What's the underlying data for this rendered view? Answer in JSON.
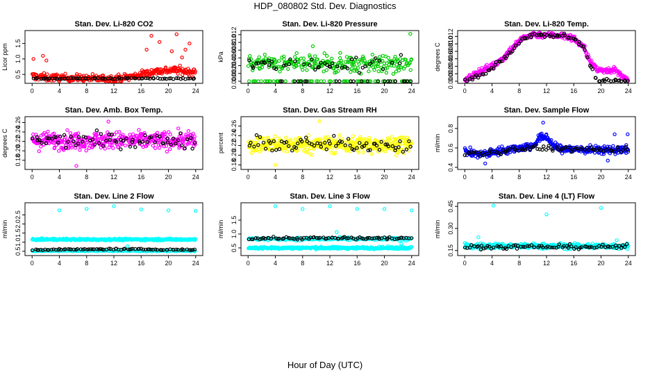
{
  "figure": {
    "title": "HDP_080802  Std. Dev. Diagnostics",
    "xlabel": "Hour of Day (UTC)"
  },
  "chart_data": [
    {
      "type": "scatter",
      "title": "Stan. Dev. Li-820 CO2",
      "ylabel": "Licor ppm",
      "color": "#FF0000",
      "xlim": [
        0,
        24
      ],
      "xticks": [
        0,
        4,
        8,
        12,
        16,
        20,
        24
      ],
      "ylim": [
        0.28,
        1.85
      ],
      "yticks": [
        0.5,
        1.0,
        1.5
      ],
      "ytick_labels": [
        "0.5",
        "1.0",
        "1.5"
      ],
      "series": [
        {
          "name": "main",
          "color": "#FF0000",
          "profile": [
            [
              0,
              0.45
            ],
            [
              2,
              0.4
            ],
            [
              6,
              0.38
            ],
            [
              12,
              0.36
            ],
            [
              14,
              0.4
            ],
            [
              16,
              0.5
            ],
            [
              18,
              0.6
            ],
            [
              21,
              0.65
            ],
            [
              24,
              0.55
            ]
          ],
          "noise": 0.12,
          "n": 320
        },
        {
          "name": "black",
          "color": "#000000",
          "profile": [
            [
              0,
              0.37
            ],
            [
              24,
              0.37
            ]
          ],
          "noise": 0.02,
          "n": 70
        }
      ],
      "outliers": [
        [
          0.2,
          1.0
        ],
        [
          1.6,
          1.1
        ],
        [
          2.1,
          0.95
        ],
        [
          16.8,
          1.3
        ],
        [
          17.5,
          1.75
        ],
        [
          18.7,
          1.55
        ],
        [
          20.5,
          1.25
        ],
        [
          21.2,
          1.8
        ],
        [
          22.5,
          1.3
        ],
        [
          23.1,
          1.5
        ],
        [
          22.0,
          1.05
        ]
      ]
    },
    {
      "type": "scatter",
      "title": "Stan. Dev. Li-820 Pressure",
      "ylabel": "kPa",
      "color": "#00CC00",
      "xlim": [
        0,
        24
      ],
      "xticks": [
        0,
        4,
        8,
        12,
        16,
        20,
        24
      ],
      "ylim": [
        0,
        0.0125
      ],
      "yticks": [
        0,
        0.002,
        0.004,
        0.006,
        0.008,
        0.01,
        0.012
      ],
      "ytick_labels": [
        "0.000",
        "0.002",
        "0.004",
        "0.006",
        "0.008",
        "0.010",
        "0.012"
      ],
      "series": [
        {
          "name": "main",
          "color": "#00CC00",
          "profile": [
            [
              0,
              0.0045
            ],
            [
              24,
              0.0045
            ]
          ],
          "noise": 0.0022,
          "n": 320,
          "zero_frac": 0.22
        },
        {
          "name": "black",
          "color": "#000000",
          "profile": [
            [
              0,
              0.0045
            ],
            [
              24,
              0.0045
            ]
          ],
          "noise": 0.0018,
          "n": 70,
          "zero_frac": 0.3
        }
      ],
      "outliers": [
        [
          23.8,
          0.0122
        ],
        [
          9.5,
          0.009
        ]
      ]
    },
    {
      "type": "scatter",
      "title": "Stan. Dev. Li-820 Temp.",
      "ylabel": "degrees C",
      "color": "#FF00FF",
      "xlim": [
        0,
        24
      ],
      "xticks": [
        0,
        4,
        8,
        12,
        16,
        20,
        24
      ],
      "ylim": [
        0,
        0.013
      ],
      "yticks": [
        0,
        0.002,
        0.004,
        0.006,
        0.008,
        0.01,
        0.012
      ],
      "ytick_labels": [
        "0.000",
        "0.002",
        "0.004",
        "0.006",
        "0.008",
        "0.010",
        "0.012"
      ],
      "series": [
        {
          "name": "main",
          "color": "#FF00FF",
          "profile": [
            [
              0,
              0
            ],
            [
              1.2,
              0.0015
            ],
            [
              2.5,
              0.003
            ],
            [
              4,
              0.004
            ],
            [
              5.5,
              0.006
            ],
            [
              7,
              0.009
            ],
            [
              8.5,
              0.0115
            ],
            [
              10,
              0.0125
            ],
            [
              14,
              0.0123
            ],
            [
              16,
              0.0115
            ],
            [
              17.5,
              0.009
            ],
            [
              18.5,
              0.005
            ],
            [
              19.5,
              0.003
            ],
            [
              22,
              0.003
            ],
            [
              24,
              0.0
            ]
          ],
          "noise": 0.0008,
          "n": 360
        },
        {
          "name": "black",
          "color": "#000000",
          "profile": [
            [
              0,
              0
            ],
            [
              3,
              0.002
            ],
            [
              5,
              0.005
            ],
            [
              7,
              0.008
            ],
            [
              8.5,
              0.0115
            ],
            [
              10,
              0.0125
            ],
            [
              14,
              0.0123
            ],
            [
              16,
              0.0115
            ],
            [
              17.5,
              0.009
            ],
            [
              18.5,
              0.004
            ],
            [
              19.5,
              0
            ],
            [
              24,
              0
            ]
          ],
          "noise": 0.0005,
          "n": 90
        }
      ],
      "outliers": []
    },
    {
      "type": "scatter",
      "title": "Stan. Dev. Amb. Box Temp.",
      "ylabel": "degrees C",
      "color": "#FF00FF",
      "xlim": [
        0,
        24
      ],
      "xticks": [
        0,
        4,
        8,
        12,
        16,
        20,
        24
      ],
      "ylim": [
        0.165,
        0.268
      ],
      "yticks": [
        0.18,
        0.2,
        0.22,
        0.24,
        0.26
      ],
      "ytick_labels": [
        "0.18",
        "0.20",
        "0.22",
        "0.24",
        "0.26"
      ],
      "series": [
        {
          "name": "main",
          "color": "#FF00FF",
          "profile": [
            [
              0,
              0.222
            ],
            [
              24,
              0.222
            ]
          ],
          "noise": 0.018,
          "n": 380
        },
        {
          "name": "black",
          "color": "#000000",
          "profile": [
            [
              0,
              0.222
            ],
            [
              24,
              0.222
            ]
          ],
          "noise": 0.015,
          "n": 70
        }
      ],
      "outliers": [
        [
          6.5,
          0.168
        ],
        [
          11.2,
          0.262
        ]
      ]
    },
    {
      "type": "scatter",
      "title": "Stan. Dev. Gas Stream RH",
      "ylabel": "percent",
      "color": "#FFFF00",
      "xlim": [
        0,
        24
      ],
      "xticks": [
        0,
        4,
        8,
        12,
        16,
        20,
        24
      ],
      "ylim": [
        0.175,
        0.275
      ],
      "yticks": [
        0.18,
        0.2,
        0.22,
        0.24,
        0.26
      ],
      "ytick_labels": [
        "0.18",
        "0.20",
        "0.22",
        "0.24",
        "0.26"
      ],
      "series": [
        {
          "name": "main",
          "color": "#FFFF00",
          "profile": [
            [
              0,
              0.222
            ],
            [
              24,
              0.222
            ]
          ],
          "noise": 0.017,
          "n": 380
        },
        {
          "name": "black",
          "color": "#000000",
          "profile": [
            [
              0,
              0.222
            ],
            [
              24,
              0.222
            ]
          ],
          "noise": 0.014,
          "n": 70
        }
      ],
      "outliers": [
        [
          10.5,
          0.27
        ],
        [
          4.0,
          0.18
        ]
      ]
    },
    {
      "type": "scatter",
      "title": "Stan. Dev. Sample Flow",
      "ylabel": "ml/min",
      "color": "#0000FF",
      "xlim": [
        0,
        24
      ],
      "xticks": [
        0,
        4,
        8,
        12,
        16,
        20,
        24
      ],
      "ylim": [
        0.4,
        0.9
      ],
      "yticks": [
        0.4,
        0.6,
        0.8
      ],
      "ytick_labels": [
        "0.4",
        "0.6",
        "0.8"
      ],
      "series": [
        {
          "name": "main",
          "color": "#0000FF",
          "profile": [
            [
              0,
              0.56
            ],
            [
              2,
              0.53
            ],
            [
              4,
              0.55
            ],
            [
              6,
              0.58
            ],
            [
              8,
              0.6
            ],
            [
              10,
              0.62
            ],
            [
              11,
              0.7
            ],
            [
              12,
              0.72
            ],
            [
              13,
              0.62
            ],
            [
              14,
              0.59
            ],
            [
              18,
              0.58
            ],
            [
              24,
              0.58
            ]
          ],
          "noise": 0.04,
          "n": 380
        },
        {
          "name": "black",
          "color": "#000000",
          "profile": [
            [
              0,
              0.54
            ],
            [
              4,
              0.55
            ],
            [
              10,
              0.6
            ],
            [
              12,
              0.6
            ],
            [
              24,
              0.57
            ]
          ],
          "noise": 0.03,
          "n": 80
        }
      ],
      "outliers": [
        [
          11.5,
          0.86
        ],
        [
          22.0,
          0.74
        ],
        [
          23.9,
          0.74
        ],
        [
          21.0,
          0.47
        ],
        [
          3.0,
          0.44
        ]
      ]
    },
    {
      "type": "scatter",
      "title": "Stan. Dev. Line 2 Flow",
      "ylabel": "ml/min",
      "color": "#00FFFF",
      "xlim": [
        0,
        24
      ],
      "xticks": [
        0,
        4,
        8,
        12,
        16,
        20,
        24
      ],
      "ylim": [
        0.38,
        3.05
      ],
      "yticks": [
        0.5,
        1.0,
        1.5,
        2.0,
        2.5
      ],
      "ytick_labels": [
        "0.5",
        "1.0",
        "1.5",
        "2.0",
        "2.5"
      ],
      "series": [
        {
          "name": "main",
          "color": "#00FFFF",
          "profile": [
            [
              0,
              1.15
            ],
            [
              24,
              1.15
            ]
          ],
          "noise": 0.05,
          "n": 330
        },
        {
          "name": "low",
          "color": "#00FFFF",
          "profile": [
            [
              0,
              0.52
            ],
            [
              24,
              0.52
            ]
          ],
          "noise": 0.03,
          "n": 140
        },
        {
          "name": "black",
          "color": "#000000",
          "profile": [
            [
              0,
              0.58
            ],
            [
              12,
              0.62
            ],
            [
              24,
              0.58
            ]
          ],
          "noise": 0.03,
          "n": 80
        }
      ],
      "outliers": [
        [
          4,
          2.75
        ],
        [
          8,
          2.83
        ],
        [
          12,
          2.98
        ],
        [
          16,
          2.8
        ],
        [
          20,
          2.75
        ],
        [
          24,
          2.72
        ],
        [
          14,
          0.78
        ]
      ]
    },
    {
      "type": "scatter",
      "title": "Stan. Dev. Line 3 Flow",
      "ylabel": "ml/min",
      "color": "#00FFFF",
      "xlim": [
        0,
        24
      ],
      "xticks": [
        0,
        4,
        8,
        12,
        16,
        20,
        24
      ],
      "ylim": [
        0.3,
        2.05
      ],
      "yticks": [
        0.5,
        1.0,
        1.5
      ],
      "ytick_labels": [
        "0.5",
        "1.0",
        "1.5"
      ],
      "series": [
        {
          "name": "main",
          "color": "#00FFFF",
          "profile": [
            [
              0,
              0.5
            ],
            [
              24,
              0.5
            ]
          ],
          "noise": 0.04,
          "n": 330
        },
        {
          "name": "upper",
          "color": "#00FFFF",
          "profile": [
            [
              0,
              0.82
            ],
            [
              24,
              0.82
            ]
          ],
          "noise": 0.05,
          "n": 180
        },
        {
          "name": "black",
          "color": "#000000",
          "profile": [
            [
              0,
              0.85
            ],
            [
              24,
              0.85
            ]
          ],
          "noise": 0.05,
          "n": 80
        }
      ],
      "outliers": [
        [
          4,
          2.0
        ],
        [
          8,
          1.9
        ],
        [
          12,
          2.0
        ],
        [
          16,
          1.9
        ],
        [
          20,
          1.9
        ],
        [
          24,
          1.85
        ],
        [
          13,
          1.07
        ],
        [
          22.5,
          0.65
        ]
      ]
    },
    {
      "type": "scatter",
      "title": "Stan. Dev. Line 4 (LT) Flow",
      "ylabel": "ml/min",
      "color": "#00FFFF",
      "xlim": [
        0,
        24
      ],
      "xticks": [
        0,
        4,
        8,
        12,
        16,
        20,
        24
      ],
      "ylim": [
        0.13,
        0.46
      ],
      "yticks": [
        0.15,
        0.3,
        0.45
      ],
      "ytick_labels": [
        "0.15",
        "0.30",
        "0.45"
      ],
      "series": [
        {
          "name": "main",
          "color": "#00FFFF",
          "profile": [
            [
              0,
              0.18
            ],
            [
              24,
              0.18
            ]
          ],
          "noise": 0.018,
          "n": 380
        },
        {
          "name": "black",
          "color": "#000000",
          "profile": [
            [
              0,
              0.175
            ],
            [
              24,
              0.175
            ]
          ],
          "noise": 0.015,
          "n": 80
        }
      ],
      "outliers": [
        [
          4.2,
          0.455
        ],
        [
          12.0,
          0.395
        ],
        [
          20.0,
          0.44
        ],
        [
          2.0,
          0.24
        ],
        [
          22.3,
          0.22
        ],
        [
          23.9,
          0.16
        ]
      ]
    }
  ]
}
